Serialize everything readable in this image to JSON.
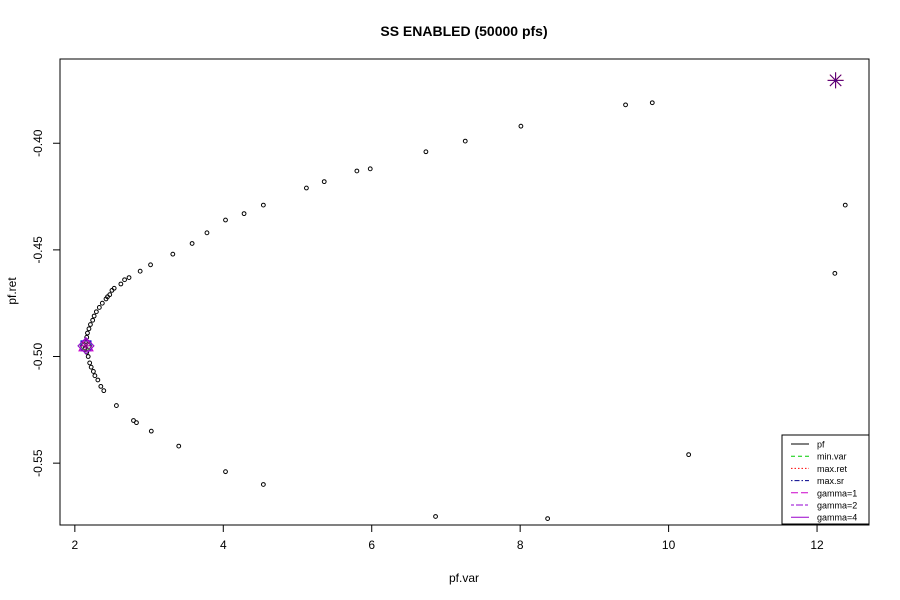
{
  "chart_data": {
    "type": "scatter",
    "title": "SS ENABLED (50000 pfs)",
    "xlabel": "pf.var",
    "ylabel": "pf.ret",
    "xlim": [
      1.8,
      12.7
    ],
    "ylim": [
      -0.579,
      -0.3605
    ],
    "x_ticks": [
      2,
      4,
      6,
      8,
      10,
      12
    ],
    "x_tick_labels": [
      "2",
      "4",
      "6",
      "8",
      "10",
      "12"
    ],
    "y_ticks": [
      -0.4,
      -0.45,
      -0.5,
      -0.55
    ],
    "y_tick_labels": [
      "-0.40",
      "-0.45",
      "-0.50",
      "-0.55"
    ],
    "grid": false,
    "legend_position": "bottom-right",
    "series": [
      {
        "name": "pf",
        "color": "#000000",
        "marker": "open-circle",
        "points": [
          [
            2.14,
            -0.496
          ],
          [
            2.15,
            -0.493
          ],
          [
            2.16,
            -0.498
          ],
          [
            2.16,
            -0.491
          ],
          [
            2.17,
            -0.489
          ],
          [
            2.18,
            -0.5
          ],
          [
            2.19,
            -0.487
          ],
          [
            2.2,
            -0.503
          ],
          [
            2.21,
            -0.485
          ],
          [
            2.22,
            -0.505
          ],
          [
            2.24,
            -0.483
          ],
          [
            2.25,
            -0.507
          ],
          [
            2.26,
            -0.481
          ],
          [
            2.27,
            -0.509
          ],
          [
            2.29,
            -0.479
          ],
          [
            2.31,
            -0.511
          ],
          [
            2.33,
            -0.477
          ],
          [
            2.35,
            -0.514
          ],
          [
            2.37,
            -0.475
          ],
          [
            2.39,
            -0.516
          ],
          [
            2.42,
            -0.473
          ],
          [
            2.44,
            -0.472
          ],
          [
            2.47,
            -0.471
          ],
          [
            2.5,
            -0.469
          ],
          [
            2.53,
            -0.468
          ],
          [
            2.56,
            -0.523
          ],
          [
            2.62,
            -0.466
          ],
          [
            2.67,
            -0.464
          ],
          [
            2.73,
            -0.463
          ],
          [
            2.79,
            -0.53
          ],
          [
            2.83,
            -0.531
          ],
          [
            2.88,
            -0.46
          ],
          [
            3.02,
            -0.457
          ],
          [
            3.03,
            -0.535
          ],
          [
            3.32,
            -0.452
          ],
          [
            3.4,
            -0.542
          ],
          [
            3.58,
            -0.447
          ],
          [
            3.78,
            -0.442
          ],
          [
            4.03,
            -0.436
          ],
          [
            4.03,
            -0.554
          ],
          [
            4.28,
            -0.433
          ],
          [
            4.54,
            -0.429
          ],
          [
            4.54,
            -0.56
          ],
          [
            5.12,
            -0.421
          ],
          [
            5.36,
            -0.418
          ],
          [
            5.8,
            -0.413
          ],
          [
            5.98,
            -0.412
          ],
          [
            6.73,
            -0.404
          ],
          [
            6.86,
            -0.575
          ],
          [
            7.26,
            -0.399
          ],
          [
            8.01,
            -0.392
          ],
          [
            8.37,
            -0.576
          ],
          [
            9.42,
            -0.382
          ],
          [
            9.78,
            -0.381
          ],
          [
            10.27,
            -0.546
          ],
          [
            12.24,
            -0.461
          ],
          [
            12.38,
            -0.429
          ]
        ]
      }
    ],
    "special_points": [
      {
        "name": "min.var",
        "x": 2.15,
        "y": -0.495,
        "color": "#00cc00",
        "marker": "diamond"
      },
      {
        "name": "max.ret",
        "x": 12.25,
        "y": -0.3705,
        "color": "#ff0000",
        "marker": "asterisk"
      },
      {
        "name": "max.sr",
        "x": 2.15,
        "y": -0.495,
        "color": "#0000cc",
        "marker": "square"
      },
      {
        "name": "gamma=1",
        "x": 2.15,
        "y": -0.495,
        "color": "#cc00cc",
        "marker": "triangle"
      },
      {
        "name": "gamma=2",
        "x": 2.15,
        "y": -0.495,
        "color": "#9400d3",
        "marker": "diamond"
      },
      {
        "name": "gamma=4",
        "x": 2.15,
        "y": -0.495,
        "color": "#8b008b",
        "marker": "asterisk"
      },
      {
        "name": "max.ret-overlay",
        "x": 12.25,
        "y": -0.3705,
        "color": "#4b0082",
        "marker": "asterisk"
      }
    ],
    "legend": [
      {
        "label": "pf",
        "color": "#000000",
        "dash": "solid"
      },
      {
        "label": "min.var",
        "color": "#00cc00",
        "dash": "dashed"
      },
      {
        "label": "max.ret",
        "color": "#ff0000",
        "dash": "dotted"
      },
      {
        "label": "max.sr",
        "color": "#00008b",
        "dash": "dotdash"
      },
      {
        "label": "gamma=1",
        "color": "#cc00cc",
        "dash": "longdash"
      },
      {
        "label": "gamma=2",
        "color": "#9400d3",
        "dash": "twodash"
      },
      {
        "label": "gamma=4",
        "color": "#9900cc",
        "dash": "solid"
      }
    ]
  }
}
